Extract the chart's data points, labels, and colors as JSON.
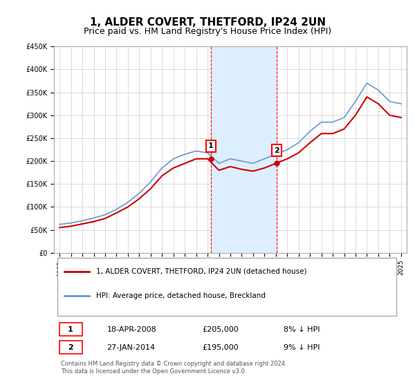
{
  "title": "1, ALDER COVERT, THETFORD, IP24 2UN",
  "subtitle": "Price paid vs. HM Land Registry's House Price Index (HPI)",
  "ylabel": "",
  "xlabel": "",
  "ylim": [
    0,
    450000
  ],
  "yticks": [
    0,
    50000,
    100000,
    150000,
    200000,
    250000,
    300000,
    350000,
    400000,
    450000
  ],
  "ytick_labels": [
    "£0",
    "£50K",
    "£100K",
    "£150K",
    "£200K",
    "£250K",
    "£300K",
    "£350K",
    "£400K",
    "£450K"
  ],
  "sale1_date": 2008.3,
  "sale1_price": 205000,
  "sale1_label": "18-APR-2008",
  "sale2_date": 2014.07,
  "sale2_price": 195000,
  "sale2_label": "27-JAN-2014",
  "line_property_color": "#cc0000",
  "line_hpi_color": "#6699cc",
  "shade_color": "#ddeeff",
  "marker_box_color": "#cc0000",
  "legend_label1": "1, ALDER COVERT, THETFORD, IP24 2UN (detached house)",
  "legend_label2": "HPI: Average price, detached house, Breckland",
  "footnote": "Contains HM Land Registry data © Crown copyright and database right 2024.\nThis data is licensed under the Open Government Licence v3.0.",
  "table_row1": [
    "1",
    "18-APR-2008",
    "£205,000",
    "8% ↓ HPI"
  ],
  "table_row2": [
    "2",
    "27-JAN-2014",
    "£195,000",
    "9% ↓ HPI"
  ],
  "hpi_years": [
    1995,
    1996,
    1997,
    1998,
    1999,
    2000,
    2001,
    2002,
    2003,
    2004,
    2005,
    2006,
    2007,
    2008,
    2009,
    2010,
    2011,
    2012,
    2013,
    2014,
    2015,
    2016,
    2017,
    2018,
    2019,
    2020,
    2021,
    2022,
    2023,
    2024,
    2025
  ],
  "hpi_values": [
    62000,
    65000,
    70000,
    76000,
    83000,
    95000,
    110000,
    130000,
    155000,
    185000,
    205000,
    215000,
    222000,
    218000,
    195000,
    205000,
    200000,
    195000,
    205000,
    215000,
    225000,
    240000,
    265000,
    285000,
    285000,
    295000,
    330000,
    370000,
    355000,
    330000,
    325000
  ],
  "prop_years": [
    1995,
    1996,
    1997,
    1998,
    1999,
    2000,
    2001,
    2002,
    2003,
    2004,
    2005,
    2006,
    2007,
    2008,
    2009,
    2010,
    2011,
    2012,
    2013,
    2014,
    2015,
    2016,
    2017,
    2018,
    2019,
    2020,
    2021,
    2022,
    2023,
    2024,
    2025
  ],
  "prop_values": [
    55000,
    58000,
    63000,
    68000,
    75000,
    87000,
    100000,
    118000,
    140000,
    168000,
    185000,
    195000,
    205000,
    205000,
    180000,
    188000,
    182000,
    178000,
    185000,
    195000,
    205000,
    218000,
    240000,
    260000,
    260000,
    270000,
    300000,
    340000,
    325000,
    300000,
    295000
  ]
}
